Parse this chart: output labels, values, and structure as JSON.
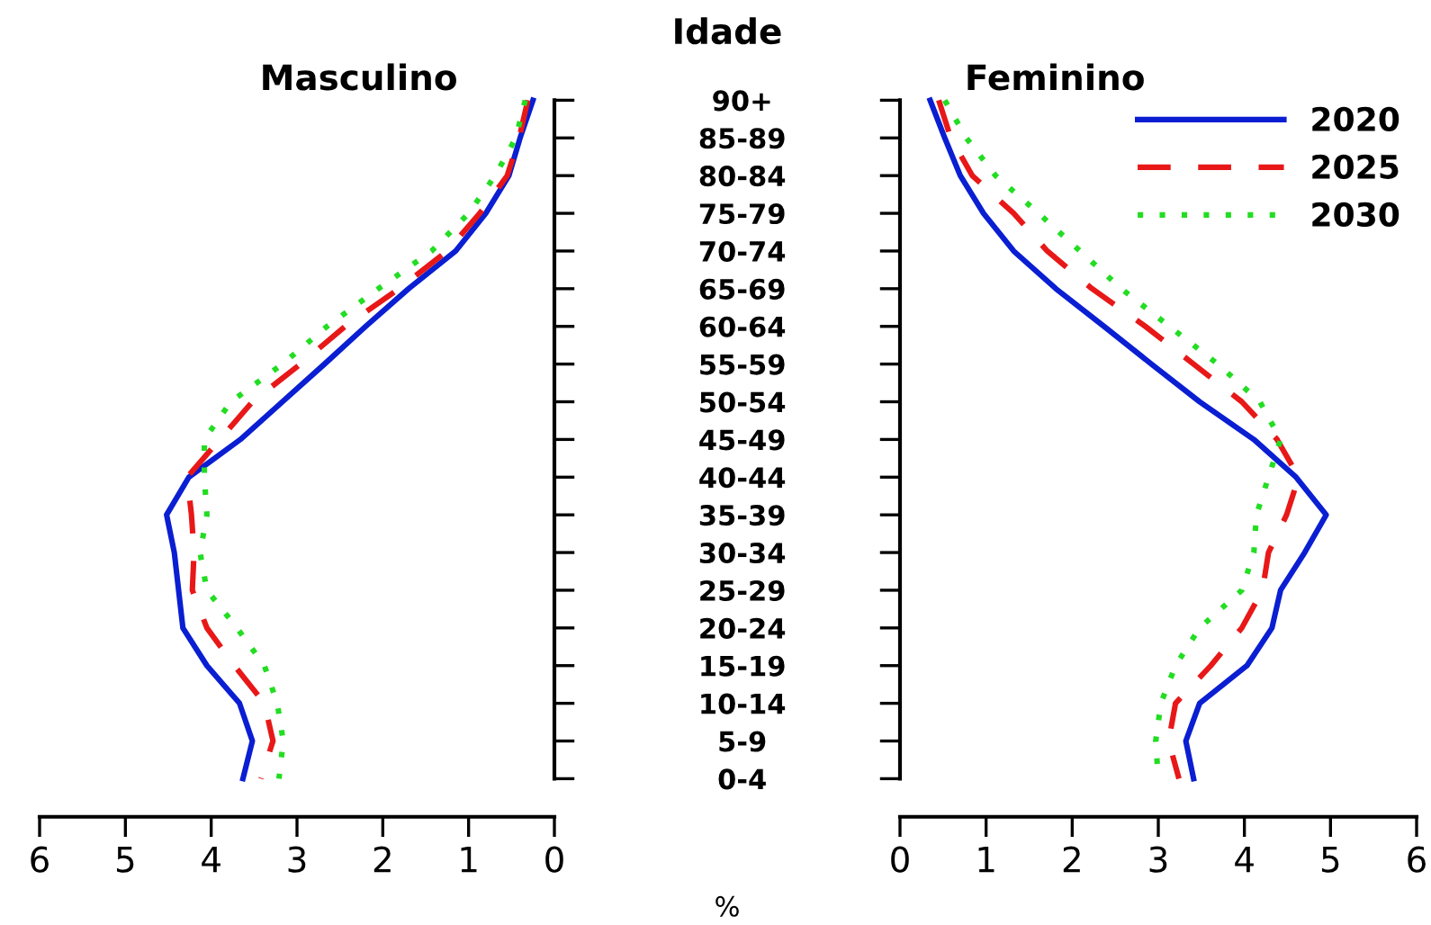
{
  "chart_data": [
    {
      "type": "line",
      "orientation": "horizontal",
      "title": "Masculino",
      "ylabel": "Idade",
      "xlabel": "%",
      "tick_labels": "xy",
      "legend": false,
      "categories": [
        "90+",
        "85-89",
        "80-84",
        "75-79",
        "70-74",
        "65-69",
        "60-64",
        "55-59",
        "50-54",
        "45-49",
        "40-44",
        "35-39",
        "30-34",
        "25-29",
        "20-24",
        "15-19",
        "10-14",
        "5-9",
        "0-4"
      ],
      "xlim": [
        6,
        0
      ],
      "xticks": [
        6,
        5,
        4,
        3,
        2,
        1,
        0
      ],
      "series": [
        {
          "color": "#0a1ed2",
          "line_style": "solid",
          "values": [
            0.25,
            0.4,
            0.53,
            0.8,
            1.15,
            1.7,
            2.2,
            2.68,
            3.17,
            3.66,
            4.26,
            4.52,
            4.43,
            4.38,
            4.33,
            4.05,
            3.67,
            3.52,
            3.63
          ]
        },
        {
          "color": "#e81818",
          "line_style": "dashed",
          "values": [
            0.31,
            0.41,
            0.55,
            0.87,
            1.25,
            1.81,
            2.44,
            2.96,
            3.52,
            3.9,
            4.28,
            4.23,
            4.2,
            4.22,
            4.05,
            3.73,
            3.38,
            3.28,
            3.42
          ]
        },
        {
          "color": "#22dd22",
          "line_style": "dotted",
          "values": [
            0.34,
            0.45,
            0.69,
            1.0,
            1.43,
            2.05,
            2.65,
            3.17,
            3.77,
            4.08,
            4.08,
            4.05,
            4.13,
            4.05,
            3.7,
            3.38,
            3.23,
            3.16,
            3.21
          ]
        }
      ]
    },
    {
      "type": "line",
      "orientation": "horizontal",
      "title": "Feminino",
      "tick_labels": "x",
      "legend": "top right",
      "categories": [
        "90+",
        "85-89",
        "80-84",
        "75-79",
        "70-74",
        "65-69",
        "60-64",
        "55-59",
        "50-54",
        "45-49",
        "40-44",
        "35-39",
        "30-34",
        "25-29",
        "20-24",
        "15-19",
        "10-14",
        "5-9",
        "0-4"
      ],
      "xlim": [
        0,
        6
      ],
      "xticks": [
        0,
        1,
        2,
        3,
        4,
        5,
        6
      ],
      "series": [
        {
          "name": "2020",
          "color": "#0a1ed2",
          "line_style": "solid",
          "values": [
            0.35,
            0.52,
            0.7,
            0.97,
            1.32,
            1.81,
            2.37,
            2.92,
            3.48,
            4.11,
            4.6,
            4.95,
            4.7,
            4.42,
            4.32,
            4.03,
            3.48,
            3.32,
            3.41
          ]
        },
        {
          "name": "2025",
          "color": "#e81818",
          "line_style": "dashed",
          "values": [
            0.45,
            0.59,
            0.84,
            1.32,
            1.71,
            2.23,
            2.85,
            3.41,
            3.97,
            4.38,
            4.63,
            4.49,
            4.28,
            4.21,
            3.97,
            3.61,
            3.2,
            3.12,
            3.24
          ]
        },
        {
          "name": "2030",
          "color": "#22dd22",
          "line_style": "dotted",
          "values": [
            0.52,
            0.77,
            1.11,
            1.61,
            2.09,
            2.57,
            3.13,
            3.69,
            4.18,
            4.42,
            4.28,
            4.14,
            4.11,
            3.97,
            3.48,
            3.2,
            3.03,
            2.97,
            3.0
          ]
        }
      ]
    }
  ]
}
